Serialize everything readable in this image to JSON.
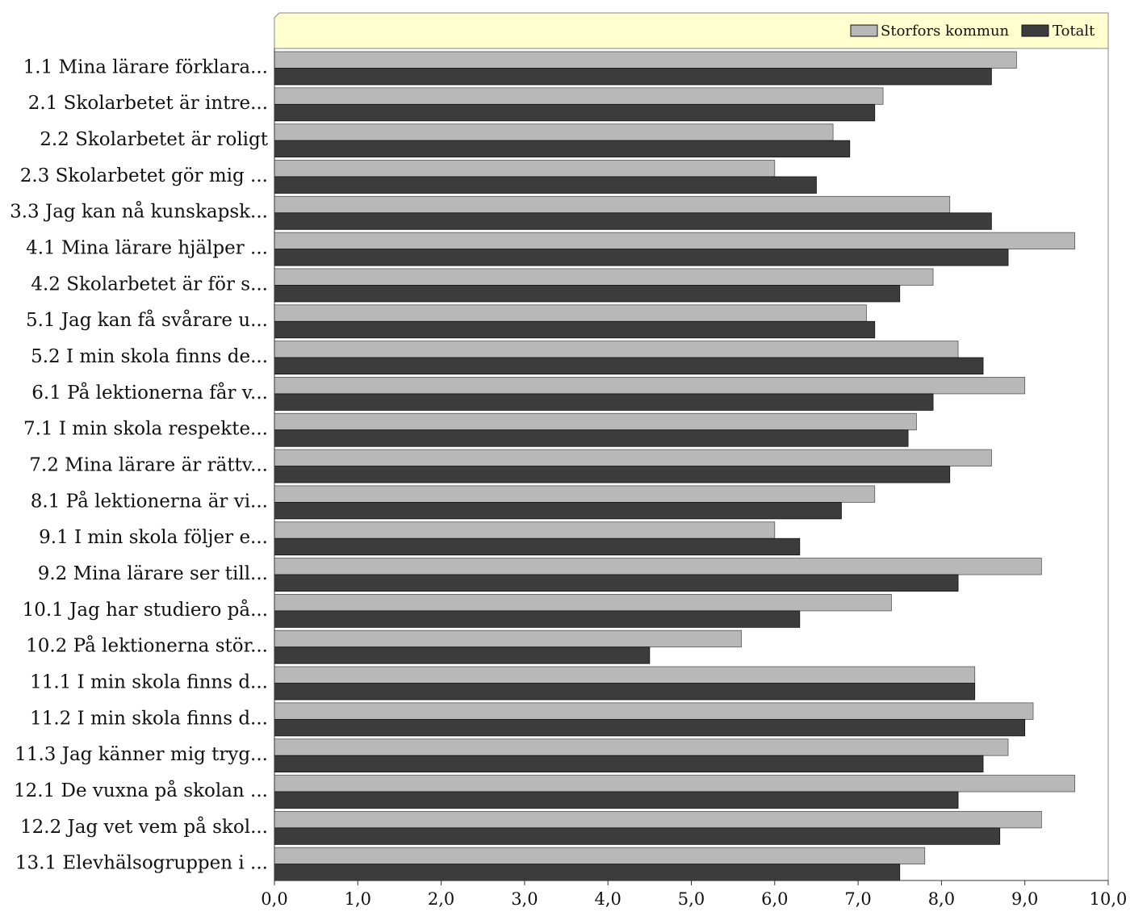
{
  "chart_data": {
    "type": "bar",
    "orientation": "horizontal",
    "categories": [
      "1.1 Mina lärare förklara...",
      "2.1 Skolarbetet är intre...",
      "2.2 Skolarbetet är roligt",
      "2.3 Skolarbetet gör mig ...",
      "3.3 Jag kan nå kunskapsk...",
      "4.1 Mina lärare hjälper ...",
      "4.2 Skolarbetet är för s...",
      "5.1 Jag kan få svårare u...",
      "5.2 I min skola finns de...",
      "6.1 På lektionerna får v...",
      "7.1 I min skola respekte...",
      "7.2 Mina lärare är rättv...",
      "8.1 På lektionerna är vi...",
      "9.1 I min skola följer e...",
      "9.2 Mina lärare ser till...",
      "10.1 Jag har studiero på...",
      "10.2 På lektionerna stör...",
      "11.1 I min skola finns d...",
      "11.2 I min skola finns d...",
      "11.3 Jag känner mig tryg...",
      "12.1 De vuxna på skolan ...",
      "12.2 Jag vet vem på skol...",
      "13.1 Elevhälsogruppen i ..."
    ],
    "series": [
      {
        "name": "Storfors kommun",
        "color": "#b8b8b8",
        "values": [
          8.9,
          7.3,
          6.7,
          6.0,
          8.1,
          9.6,
          7.9,
          7.1,
          8.2,
          9.0,
          7.7,
          8.6,
          7.2,
          6.0,
          9.2,
          7.4,
          5.6,
          8.4,
          9.1,
          8.8,
          9.6,
          9.2,
          7.8
        ]
      },
      {
        "name": "Totalt",
        "color": "#3c3c3c",
        "values": [
          8.6,
          7.2,
          6.9,
          6.5,
          8.6,
          8.8,
          7.5,
          7.2,
          8.5,
          7.9,
          7.6,
          8.1,
          6.8,
          6.3,
          8.2,
          6.3,
          4.5,
          8.4,
          9.0,
          8.5,
          8.2,
          8.7,
          7.5
        ]
      }
    ],
    "xlim": [
      0,
      10
    ],
    "x_ticks": [
      "0,0",
      "1,0",
      "2,0",
      "3,0",
      "4,0",
      "5,0",
      "6,0",
      "7,0",
      "8,0",
      "9,0",
      "10,0"
    ],
    "title": "",
    "xlabel": "",
    "ylabel": "",
    "legend_position": "top-right",
    "legend_background": "#ffffd0",
    "grid": false
  }
}
